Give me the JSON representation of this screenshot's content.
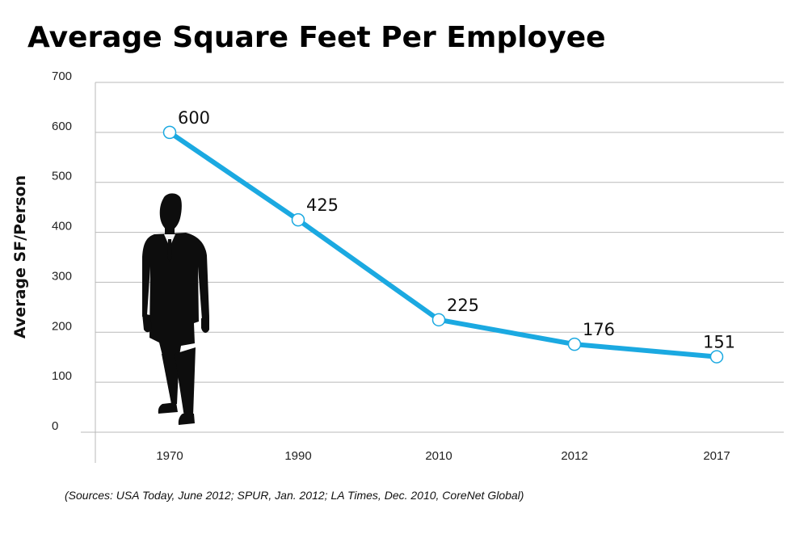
{
  "chart_data": {
    "type": "line",
    "title": "Average Square Feet Per Employee",
    "xlabel": "",
    "ylabel": "Average SF/Person",
    "categories": [
      "1970",
      "1990",
      "2010",
      "2012",
      "2017"
    ],
    "series": [
      {
        "name": "Average SF/Person",
        "values": [
          600,
          425,
          225,
          176,
          151
        ]
      }
    ],
    "data_labels": [
      "600",
      "425",
      "225",
      "176",
      "151"
    ],
    "yticks": [
      0,
      100,
      200,
      300,
      400,
      500,
      600,
      700
    ],
    "ylim": [
      0,
      700
    ],
    "grid": true,
    "source": "(Sources: USA Today, June 2012; SPUR, Jan. 2012; LA Times, Dec. 2010, CoreNet Global)",
    "colors": {
      "line": "#1ba9e1",
      "marker_stroke": "#1ba9e1",
      "silhouette": "#0d0d0d"
    }
  },
  "figure": {
    "silhouette_icon": "businessman-silhouette-icon"
  }
}
